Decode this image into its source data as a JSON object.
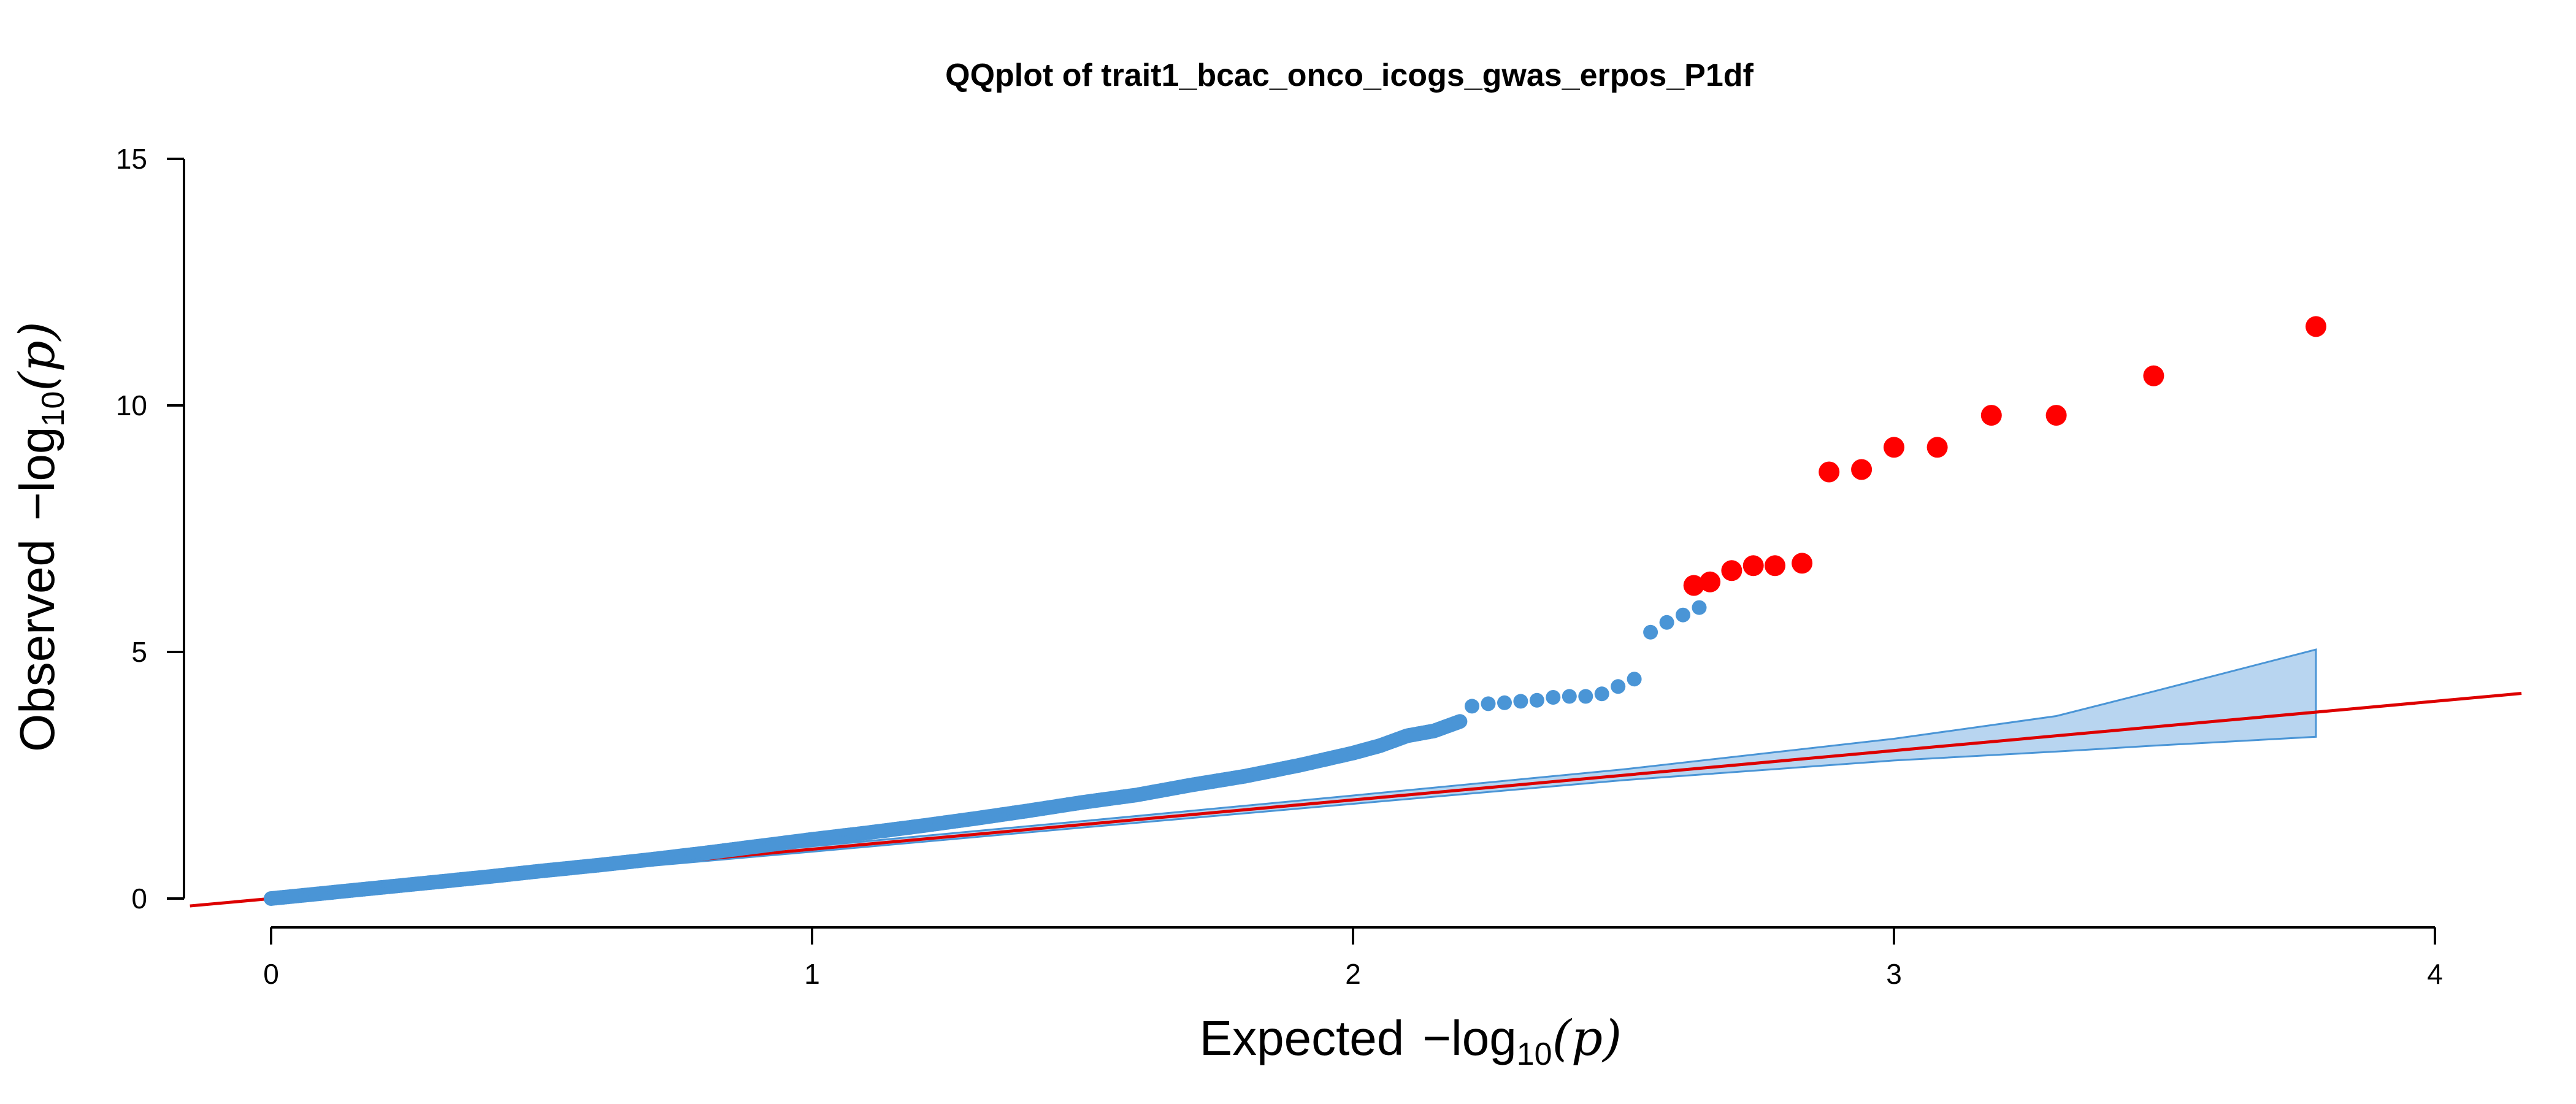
{
  "chart_data": {
    "type": "scatter",
    "title": "QQplot of trait1_bcac_onco_icogs_gwas_erpos_P1df",
    "xlabel": {
      "prefix": "Expected",
      "minus": "−",
      "log": "log",
      "sub": "10",
      "open": "(",
      "var": "p",
      "close": ")"
    },
    "ylabel": {
      "prefix": "Observed",
      "minus": "−",
      "log": "log",
      "sub": "10",
      "open": "(",
      "var": "p",
      "close": ")"
    },
    "xlim": [
      0,
      4
    ],
    "ylim": [
      0,
      15
    ],
    "xticks": [
      0,
      1,
      2,
      3,
      4
    ],
    "xtick_labels": [
      "0",
      "1",
      "2",
      "3",
      "4"
    ],
    "yticks": [
      0,
      5,
      10,
      15
    ],
    "ytick_labels": [
      "0",
      "5",
      "10",
      "15"
    ],
    "grid": false,
    "colors": {
      "points": "#4A95D6",
      "highlight": "#FF0000",
      "reference_line": "#DD0000",
      "band_fill": "#B8D5F0",
      "band_stroke": "#4A95D6"
    },
    "reference_line": {
      "slope": 1,
      "intercept": 0,
      "x_range": [
        -0.15,
        4.16
      ]
    },
    "confidence_band": {
      "x": [
        0.0,
        0.5,
        1.0,
        1.5,
        2.0,
        2.5,
        3.0,
        3.3,
        3.48,
        3.78
      ],
      "upper": [
        0.04,
        0.55,
        1.06,
        1.57,
        2.09,
        2.62,
        3.24,
        3.7,
        4.2,
        5.05
      ],
      "lower": [
        0.0,
        0.47,
        0.95,
        1.44,
        1.92,
        2.4,
        2.8,
        2.98,
        3.1,
        3.28
      ]
    },
    "series": [
      {
        "curve": {
          "x": [
            0.0,
            0.1,
            0.2,
            0.3,
            0.4,
            0.5,
            0.6,
            0.7,
            0.8,
            0.9,
            1.0,
            1.1,
            1.2,
            1.3,
            1.4,
            1.5,
            1.6,
            1.7,
            1.8,
            1.9,
            2.0,
            2.05,
            2.1,
            2.15,
            2.2
          ],
          "y": [
            0.0,
            0.11,
            0.22,
            0.33,
            0.44,
            0.56,
            0.67,
            0.79,
            0.92,
            1.06,
            1.2,
            1.33,
            1.47,
            1.62,
            1.78,
            1.95,
            2.1,
            2.3,
            2.48,
            2.7,
            2.95,
            3.1,
            3.3,
            3.4,
            3.6
          ]
        },
        "points": [
          [
            2.22,
            3.9
          ],
          [
            2.25,
            3.95
          ],
          [
            2.28,
            3.97
          ],
          [
            2.31,
            4.0
          ],
          [
            2.34,
            4.02
          ],
          [
            2.37,
            4.08
          ],
          [
            2.4,
            4.1
          ],
          [
            2.43,
            4.1
          ],
          [
            2.46,
            4.15
          ],
          [
            2.49,
            4.3
          ],
          [
            2.52,
            4.45
          ],
          [
            2.55,
            5.4
          ],
          [
            2.58,
            5.6
          ],
          [
            2.61,
            5.75
          ],
          [
            2.64,
            5.9
          ]
        ]
      },
      {
        "points": [
          [
            2.63,
            6.35
          ],
          [
            2.66,
            6.42
          ],
          [
            2.7,
            6.65
          ],
          [
            2.74,
            6.75
          ],
          [
            2.78,
            6.75
          ],
          [
            2.83,
            6.8
          ],
          [
            2.88,
            8.65
          ],
          [
            2.94,
            8.7
          ],
          [
            3.0,
            9.15
          ],
          [
            3.08,
            9.15
          ],
          [
            3.18,
            9.8
          ],
          [
            3.3,
            9.8
          ],
          [
            3.48,
            10.6
          ],
          [
            3.78,
            11.6
          ]
        ]
      }
    ]
  }
}
